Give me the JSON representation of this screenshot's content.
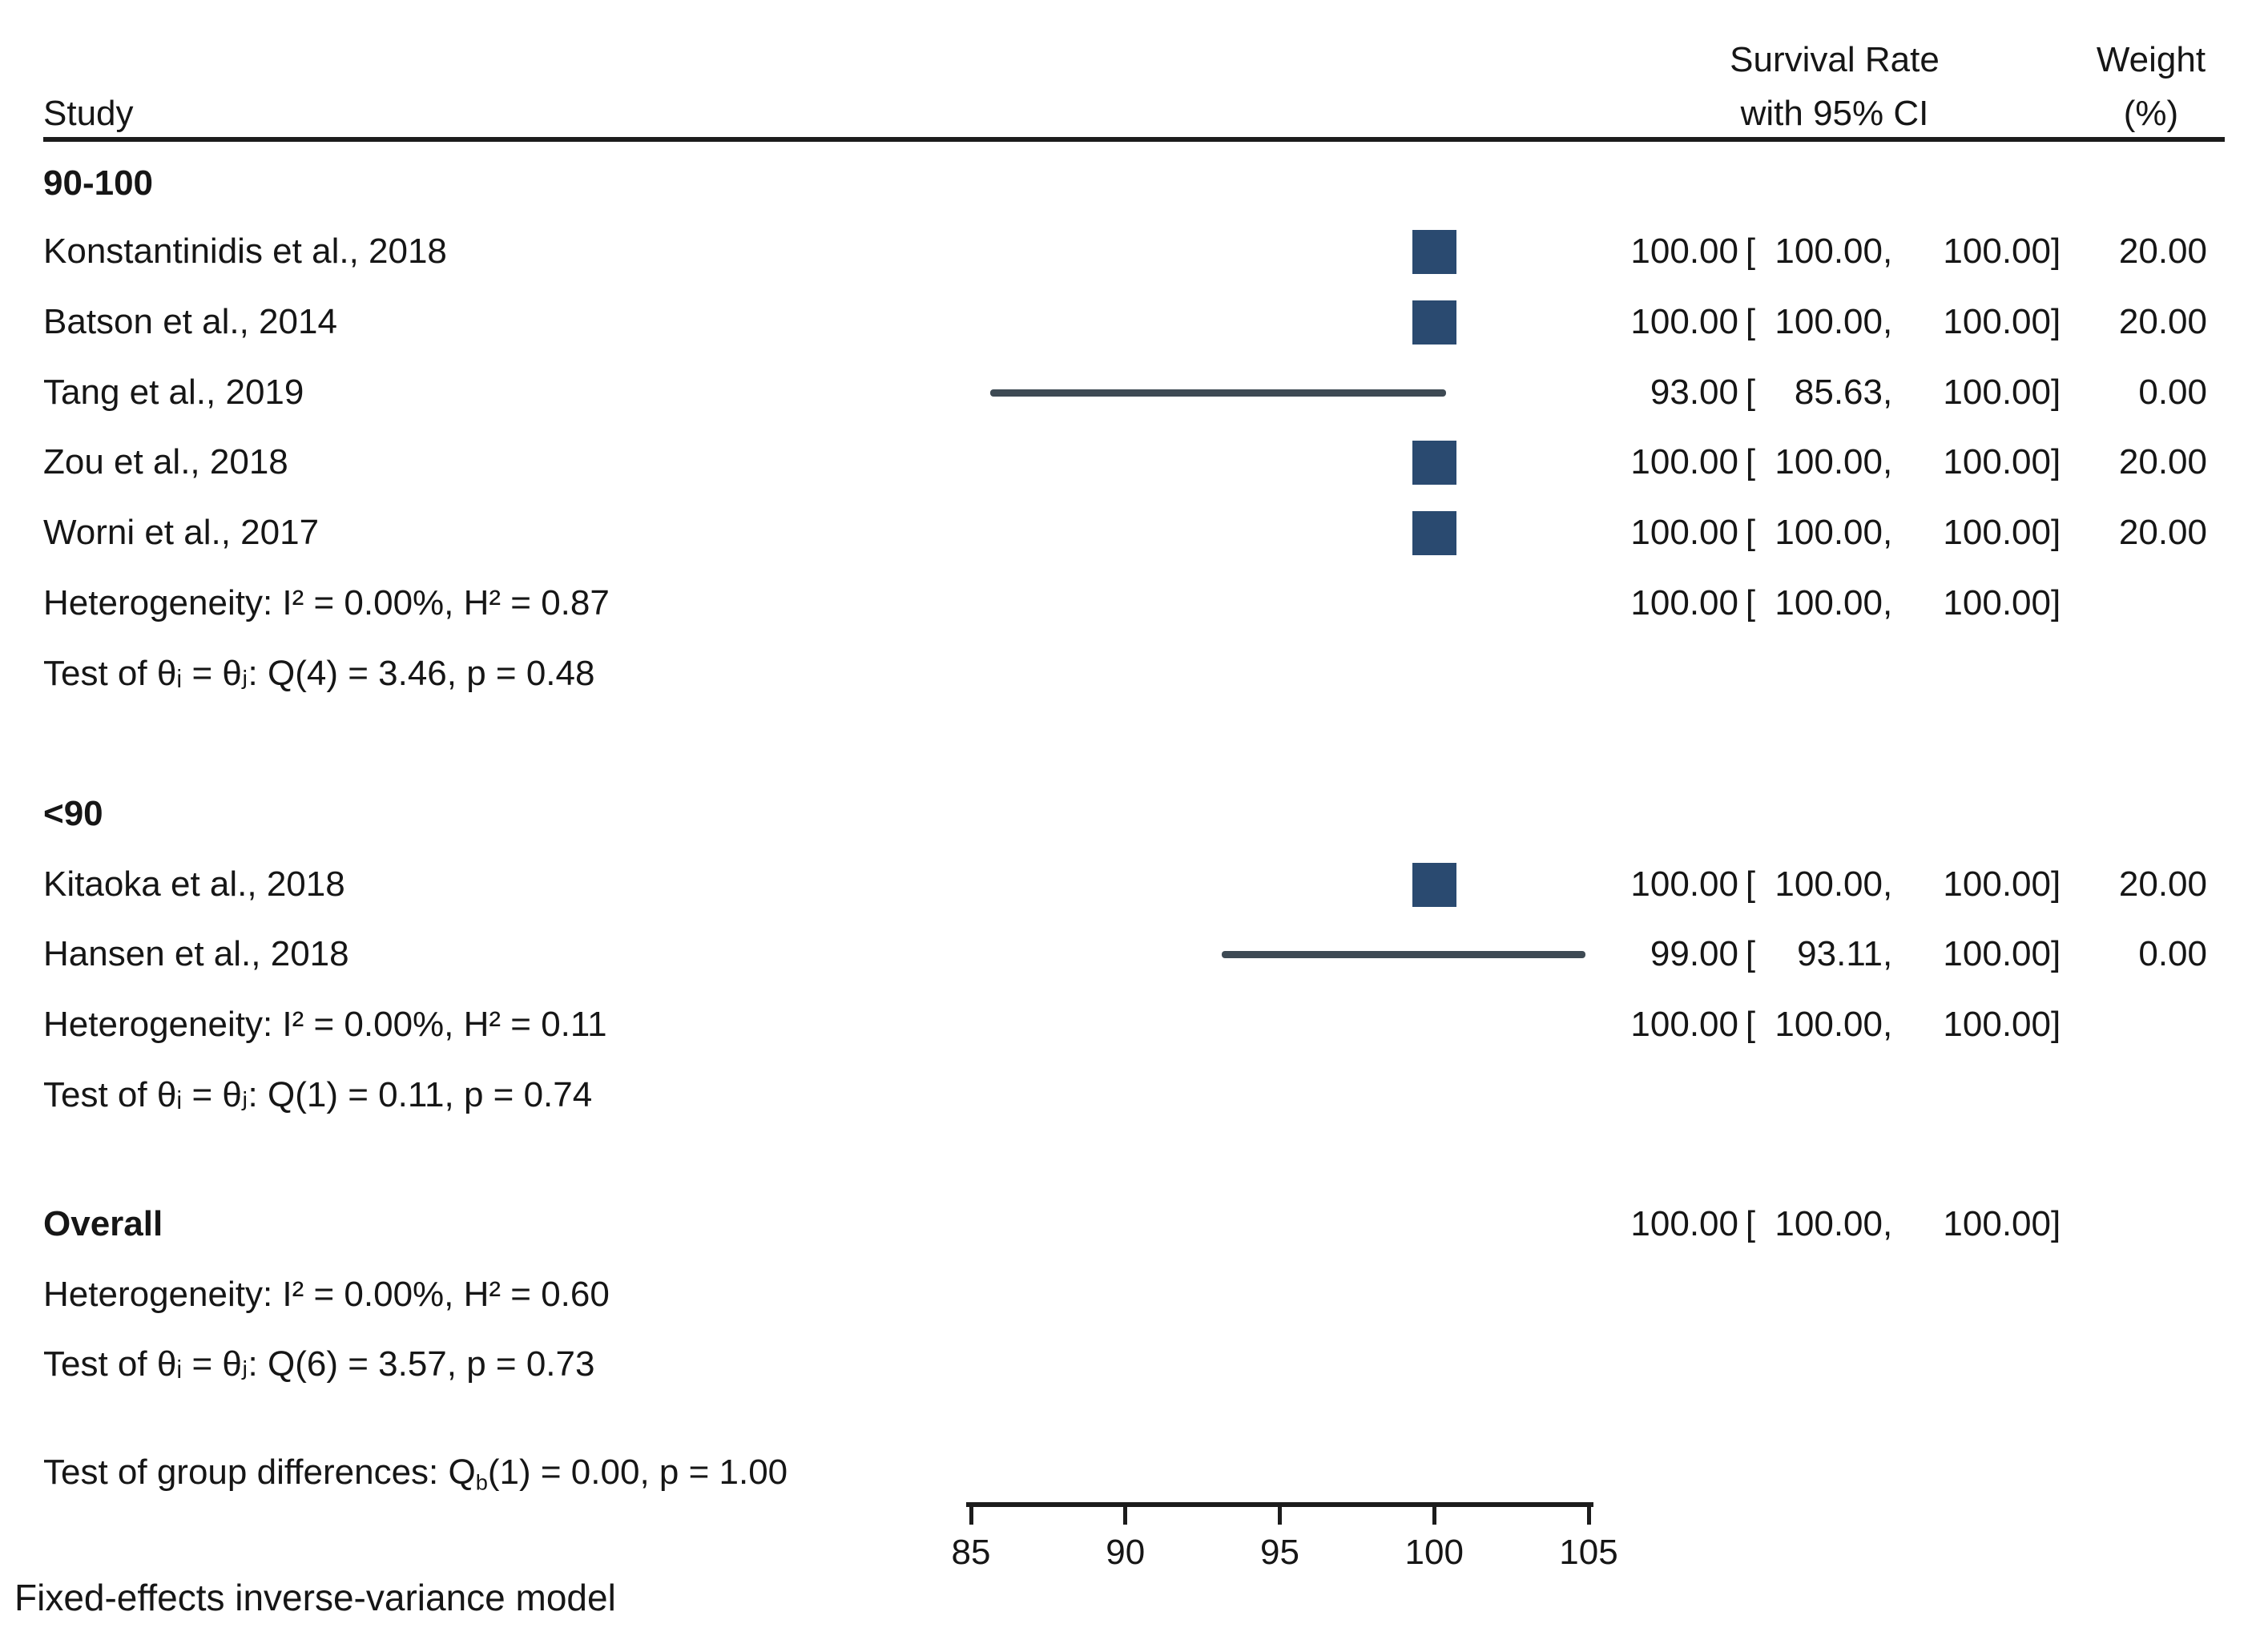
{
  "header": {
    "study_col": "Study",
    "effect_col_line1": "Survival Rate",
    "effect_col_line2": "with 95% CI",
    "weight_col_line1": "Weight",
    "weight_col_line2": "(%)"
  },
  "format": {
    "open_bracket": "[",
    "comma": ",",
    "close_bracket": "]"
  },
  "colors": {
    "marker_square": "#2a4a70",
    "ci_line": "#3e4a54",
    "text": "#161616",
    "rule": "#1c1c1c"
  },
  "axis": {
    "ticks": [
      85,
      90,
      95,
      100,
      105
    ],
    "min": 85,
    "max": 105
  },
  "footer": {
    "model_note": "Fixed-effects inverse-variance model"
  },
  "rows": [
    {
      "kind": "group-label",
      "label": "90-100"
    },
    {
      "kind": "study",
      "label": "Konstantinidis et al., 2018",
      "est": "100.00",
      "lo": "100.00",
      "hi": "100.00",
      "weight": "20.00",
      "plot": {
        "type": "square",
        "center": 100
      }
    },
    {
      "kind": "study",
      "label": "Batson et al., 2014",
      "est": "100.00",
      "lo": "100.00",
      "hi": "100.00",
      "weight": "20.00",
      "plot": {
        "type": "square",
        "center": 100
      }
    },
    {
      "kind": "study",
      "label": "Tang et al., 2019",
      "est": "93.00",
      "lo": "85.63",
      "hi": "100.00",
      "weight": "0.00",
      "plot": {
        "type": "line",
        "draw_lo": 85.63,
        "draw_hi": 100.37
      }
    },
    {
      "kind": "study",
      "label": "Zou et al., 2018",
      "est": "100.00",
      "lo": "100.00",
      "hi": "100.00",
      "weight": "20.00",
      "plot": {
        "type": "square",
        "center": 100
      }
    },
    {
      "kind": "study",
      "label": "Worni et al., 2017",
      "est": "100.00",
      "lo": "100.00",
      "hi": "100.00",
      "weight": "20.00",
      "plot": {
        "type": "square",
        "center": 100
      }
    },
    {
      "kind": "summary",
      "label": "Heterogeneity: I² = 0.00%, H² = 0.87",
      "est": "100.00",
      "lo": "100.00",
      "hi": "100.00"
    },
    {
      "kind": "test",
      "label": "Test of θᵢ = θⱼ: Q(4) = 3.46, p = 0.48"
    },
    {
      "kind": "group-label",
      "label": "<90"
    },
    {
      "kind": "study",
      "label": "Kitaoka et al., 2018",
      "est": "100.00",
      "lo": "100.00",
      "hi": "100.00",
      "weight": "20.00",
      "plot": {
        "type": "square",
        "center": 100
      }
    },
    {
      "kind": "study",
      "label": "Hansen et al., 2018",
      "est": "99.00",
      "lo": "93.11",
      "hi": "100.00",
      "weight": "0.00",
      "plot": {
        "type": "line",
        "draw_lo": 93.11,
        "draw_hi": 104.89
      }
    },
    {
      "kind": "summary",
      "label": "Heterogeneity: I² = 0.00%, H² = 0.11",
      "est": "100.00",
      "lo": "100.00",
      "hi": "100.00"
    },
    {
      "kind": "test",
      "label": "Test of θᵢ = θⱼ: Q(1) = 0.11, p = 0.74"
    },
    {
      "kind": "overall",
      "label": "Overall",
      "est": "100.00",
      "lo": "100.00",
      "hi": "100.00"
    },
    {
      "kind": "summary",
      "label": "Heterogeneity: I² = 0.00%, H² = 0.60"
    },
    {
      "kind": "test",
      "label": "Test of θᵢ = θⱼ: Q(6) = 3.57, p = 0.73"
    },
    {
      "kind": "test-group-diff",
      "prefix": "Test of group differences: Q",
      "sub": "b",
      "suffix": "(1) = 0.00, p = 1.00"
    }
  ],
  "chart_data": {
    "type": "scatter",
    "subtype": "forest-plot",
    "title": "",
    "xlabel": "",
    "xlim": [
      85,
      105
    ],
    "x_ticks": [
      85,
      90,
      95,
      100,
      105
    ],
    "effect_measure": "Survival Rate with 95% CI",
    "model": "Fixed-effects inverse-variance model",
    "groups": [
      {
        "label": "90-100",
        "studies": [
          {
            "study": "Konstantinidis et al., 2018",
            "estimate": 100.0,
            "ci_low": 100.0,
            "ci_high": 100.0,
            "weight_pct": 20.0
          },
          {
            "study": "Batson et al., 2014",
            "estimate": 100.0,
            "ci_low": 100.0,
            "ci_high": 100.0,
            "weight_pct": 20.0
          },
          {
            "study": "Tang et al., 2019",
            "estimate": 93.0,
            "ci_low": 85.63,
            "ci_high": 100.0,
            "weight_pct": 0.0
          },
          {
            "study": "Zou et al., 2018",
            "estimate": 100.0,
            "ci_low": 100.0,
            "ci_high": 100.0,
            "weight_pct": 20.0
          },
          {
            "study": "Worni et al., 2017",
            "estimate": 100.0,
            "ci_low": 100.0,
            "ci_high": 100.0,
            "weight_pct": 20.0
          }
        ],
        "pooled": {
          "estimate": 100.0,
          "ci_low": 100.0,
          "ci_high": 100.0
        },
        "heterogeneity": "I² = 0.00%, H² = 0.87",
        "test_of_theta": "Q(4) = 3.46, p = 0.48"
      },
      {
        "label": "<90",
        "studies": [
          {
            "study": "Kitaoka et al., 2018",
            "estimate": 100.0,
            "ci_low": 100.0,
            "ci_high": 100.0,
            "weight_pct": 20.0
          },
          {
            "study": "Hansen et al., 2018",
            "estimate": 99.0,
            "ci_low": 93.11,
            "ci_high": 100.0,
            "weight_pct": 0.0
          }
        ],
        "pooled": {
          "estimate": 100.0,
          "ci_low": 100.0,
          "ci_high": 100.0
        },
        "heterogeneity": "I² = 0.00%, H² = 0.11",
        "test_of_theta": "Q(1) = 0.11, p = 0.74"
      }
    ],
    "overall": {
      "pooled": {
        "estimate": 100.0,
        "ci_low": 100.0,
        "ci_high": 100.0
      },
      "heterogeneity": "I² = 0.00%, H² = 0.60",
      "test_of_theta": "Q(6) = 3.57, p = 0.73",
      "test_group_differences": "Qb(1) = 0.00, p = 1.00"
    }
  }
}
